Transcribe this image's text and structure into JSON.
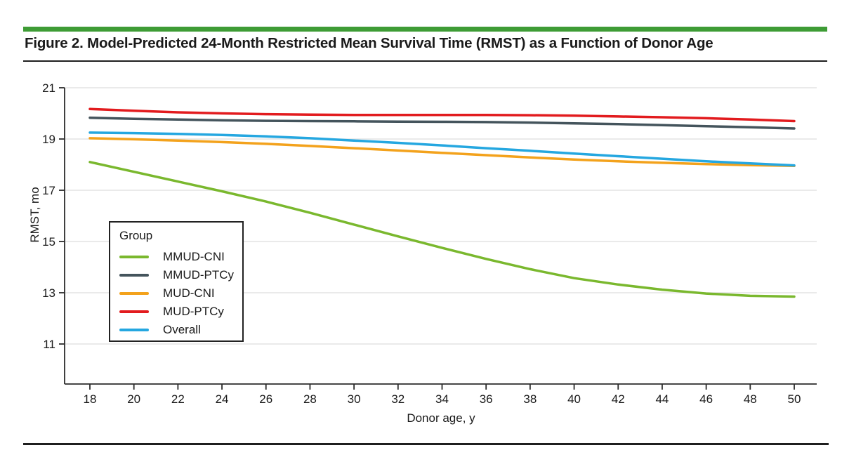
{
  "figure": {
    "title": "Figure 2. Model-Predicted 24-Month Restricted Mean Survival Time (RMST) as a Function of Donor Age"
  },
  "colors": {
    "accent_bar": "#3e9c35",
    "rule": "#1f1f1f",
    "grid": "#e4e4e4",
    "axis": "#2b2b2b",
    "text": "#1a1a1a"
  },
  "chart_data": {
    "type": "line",
    "title": "Model-Predicted 24-Month RMST as a Function of Donor Age",
    "xlabel": "Donor age, y",
    "ylabel": "RMST, mo",
    "legend_title": "Group",
    "legend_position": "left-middle",
    "grid": true,
    "xlim": [
      18,
      50
    ],
    "ylim": [
      11,
      21
    ],
    "x_ticks": [
      18,
      20,
      22,
      24,
      26,
      28,
      30,
      32,
      34,
      36,
      38,
      40,
      42,
      44,
      46,
      48,
      50
    ],
    "y_ticks": [
      21,
      19,
      17,
      15,
      13,
      11
    ],
    "x": [
      18,
      20,
      22,
      24,
      26,
      28,
      30,
      32,
      34,
      36,
      38,
      40,
      42,
      44,
      46,
      48,
      50
    ],
    "series": [
      {
        "name": "MMUD-CNI",
        "color": "#7ab82e",
        "values": [
          18.1,
          17.72,
          17.34,
          16.96,
          16.56,
          16.12,
          15.66,
          15.2,
          14.75,
          14.32,
          13.92,
          13.57,
          13.32,
          13.12,
          12.97,
          12.88,
          12.85
        ]
      },
      {
        "name": "MMUD-PTCy",
        "color": "#44545c",
        "values": [
          19.83,
          19.79,
          19.76,
          19.73,
          19.71,
          19.7,
          19.69,
          19.68,
          19.67,
          19.66,
          19.64,
          19.61,
          19.58,
          19.54,
          19.5,
          19.46,
          19.41
        ]
      },
      {
        "name": "MUD-CNI",
        "color": "#f3a21c",
        "values": [
          19.03,
          18.99,
          18.94,
          18.88,
          18.81,
          18.73,
          18.64,
          18.55,
          18.46,
          18.37,
          18.28,
          18.2,
          18.13,
          18.07,
          18.02,
          17.98,
          17.95
        ]
      },
      {
        "name": "MUD-PTCy",
        "color": "#e21b1e",
        "values": [
          20.17,
          20.1,
          20.04,
          20.0,
          19.97,
          19.95,
          19.94,
          19.94,
          19.94,
          19.94,
          19.93,
          19.91,
          19.88,
          19.85,
          19.81,
          19.76,
          19.7
        ]
      },
      {
        "name": "Overall",
        "color": "#25a7e0",
        "values": [
          19.25,
          19.23,
          19.2,
          19.16,
          19.1,
          19.03,
          18.94,
          18.85,
          18.75,
          18.64,
          18.54,
          18.43,
          18.33,
          18.23,
          18.13,
          18.05,
          17.97
        ]
      }
    ]
  }
}
